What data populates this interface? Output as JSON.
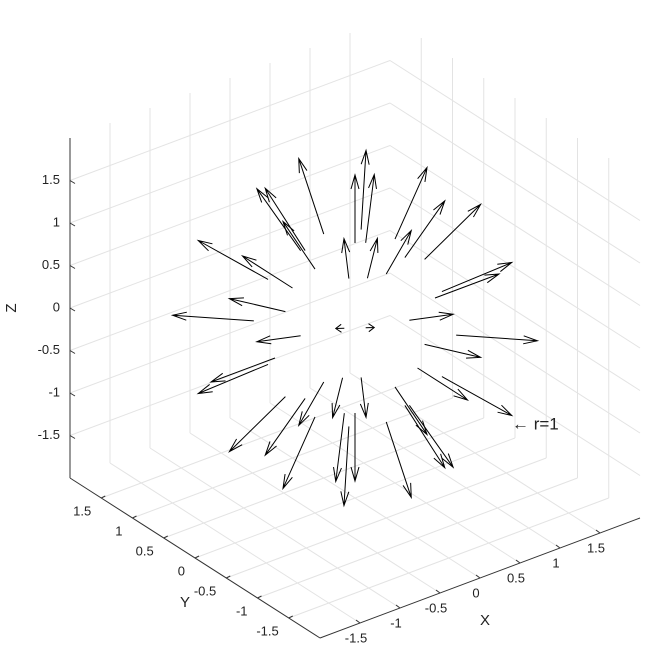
{
  "chart_data": {
    "type": "quiver3",
    "x": [
      1,
      0.71,
      0,
      -0.71,
      -1,
      -0.71,
      0,
      0.71,
      0.87,
      0.61,
      0,
      -0.61,
      -0.87,
      -0.61,
      0,
      0.61,
      0.87,
      0.61,
      0,
      -0.61,
      -0.87,
      -0.61,
      0,
      0.61,
      0.5,
      0.35,
      0,
      -0.35,
      -0.5,
      -0.35,
      0,
      0.35,
      0.5,
      0.35,
      0,
      -0.35,
      -0.5,
      -0.35,
      0,
      0.35,
      0,
      0
    ],
    "y": [
      0,
      0.71,
      1,
      0.71,
      0,
      -0.71,
      -1,
      -0.71,
      0,
      0.61,
      0.87,
      0.61,
      0,
      -0.61,
      -0.87,
      -0.61,
      0,
      0.61,
      0.87,
      0.61,
      0,
      -0.61,
      -0.87,
      -0.61,
      0,
      0.35,
      0.5,
      0.35,
      0,
      -0.35,
      -0.5,
      -0.35,
      0,
      0.35,
      0.5,
      0.35,
      0,
      -0.35,
      -0.5,
      -0.35,
      0,
      0
    ],
    "z": [
      0,
      0,
      0,
      0,
      0,
      0,
      0,
      0,
      0.5,
      0.5,
      0.5,
      0.5,
      0.5,
      0.5,
      0.5,
      0.5,
      -0.5,
      -0.5,
      -0.5,
      -0.5,
      -0.5,
      -0.5,
      -0.5,
      -0.5,
      0.87,
      0.87,
      0.87,
      0.87,
      0.87,
      0.87,
      0.87,
      0.87,
      -0.87,
      -0.87,
      -0.87,
      -0.87,
      -0.87,
      -0.87,
      -0.87,
      -0.87,
      1,
      -1
    ],
    "u": [
      0.8,
      0.57,
      0,
      -0.57,
      -0.8,
      -0.57,
      0,
      0.57,
      0.7,
      0.49,
      0,
      -0.49,
      -0.7,
      -0.49,
      0,
      0.49,
      0.7,
      0.49,
      0,
      -0.49,
      -0.7,
      -0.49,
      0,
      0.49,
      0.4,
      0.28,
      0,
      -0.28,
      -0.4,
      -0.28,
      0,
      0.28,
      0.4,
      0.28,
      0,
      -0.28,
      -0.4,
      -0.28,
      0,
      0.28,
      0,
      0
    ],
    "v": [
      0,
      0.57,
      0.8,
      0.57,
      0,
      -0.57,
      -0.8,
      -0.57,
      0,
      0.49,
      0.7,
      0.49,
      0,
      -0.49,
      -0.7,
      -0.49,
      0,
      0.49,
      0.7,
      0.49,
      0,
      -0.49,
      -0.7,
      -0.49,
      0,
      0.28,
      0.4,
      0.28,
      0,
      -0.28,
      -0.4,
      -0.28,
      0,
      0.28,
      0.4,
      0.28,
      0,
      -0.28,
      -0.4,
      -0.28,
      0,
      0
    ],
    "w": [
      0,
      0,
      0,
      0,
      0,
      0,
      0,
      0,
      0.4,
      0.4,
      0.4,
      0.4,
      0.4,
      0.4,
      0.4,
      0.4,
      -0.4,
      -0.4,
      -0.4,
      -0.4,
      -0.4,
      -0.4,
      -0.4,
      -0.4,
      0.7,
      0.7,
      0.7,
      0.7,
      0.7,
      0.7,
      0.7,
      0.7,
      -0.7,
      -0.7,
      -0.7,
      -0.7,
      -0.7,
      -0.7,
      -0.7,
      -0.7,
      0.8,
      -0.8
    ],
    "color": "#000000",
    "xlabel": "X",
    "ylabel": "Y",
    "zlabel": "Z",
    "annotation": "← r=1",
    "xlim": [
      -2,
      2
    ],
    "ylim": [
      -2,
      2
    ],
    "zlim": [
      -2,
      2
    ],
    "xticks": [
      -1.5,
      -1,
      -0.5,
      0,
      0.5,
      1,
      1.5
    ],
    "yticks": [
      -1.5,
      -1,
      -0.5,
      0,
      0.5,
      1,
      1.5
    ],
    "zticks": [
      -1.5,
      -1,
      -0.5,
      0,
      0.5,
      1,
      1.5
    ],
    "grid": true
  }
}
